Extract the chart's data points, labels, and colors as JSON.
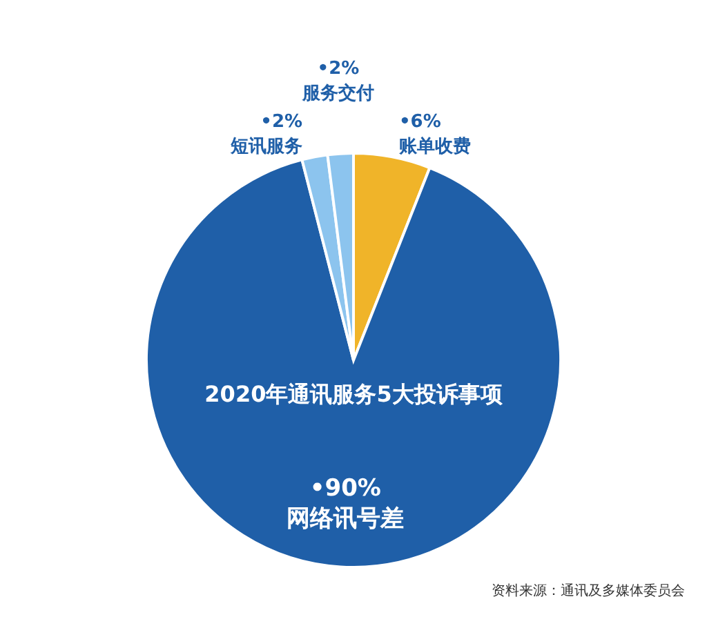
{
  "chart_data": {
    "type": "pie",
    "title": "2020年通讯服务5大投诉事项",
    "categories": [
      "账单收费",
      "网络讯号差",
      "短讯服务",
      "服务交付"
    ],
    "values": [
      6,
      90,
      2,
      2
    ],
    "value_labels": [
      "•6%",
      "•90%",
      "•2%",
      "•2%"
    ],
    "colors": [
      "#f0b429",
      "#1f5fa8",
      "#8cc4ee",
      "#8cc4ee"
    ],
    "annotations": [
      "资料来源：通讯及多媒体委员会"
    ]
  }
}
